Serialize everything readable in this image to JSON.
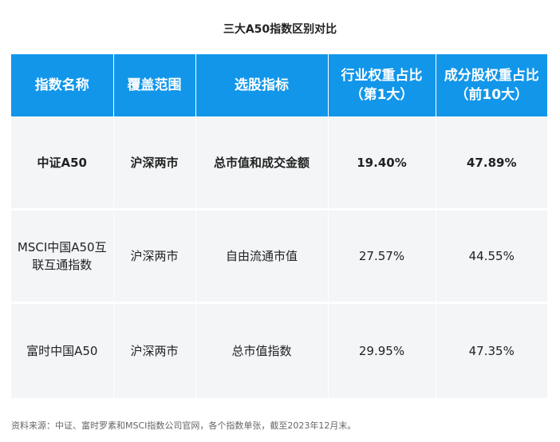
{
  "title": "三大A50指数区别对比",
  "table": {
    "headers": [
      "指数名称",
      "覆盖范围",
      "选股指标",
      "行业权重占比（第1大）",
      "成分股权重占比（前10大）"
    ],
    "rows": [
      [
        "中证A50",
        "沪深两市",
        "总市值和成交金额",
        "19.40%",
        "47.89%"
      ],
      [
        "MSCI中国A50互联互通指数",
        "沪深两市",
        "自由流通市值",
        "27.57%",
        "44.55%"
      ],
      [
        "富时中国A50",
        "沪深两市",
        "总市值指数",
        "29.95%",
        "47.35%"
      ]
    ]
  },
  "source": "资料来源：中证、富时罗素和MSCI指数公司官网，各个指数单张，截至2023年12月末。",
  "colors": {
    "header_bg": "#1296ea",
    "header_text": "#ffffff",
    "row_bg": "#f3f5f7"
  }
}
